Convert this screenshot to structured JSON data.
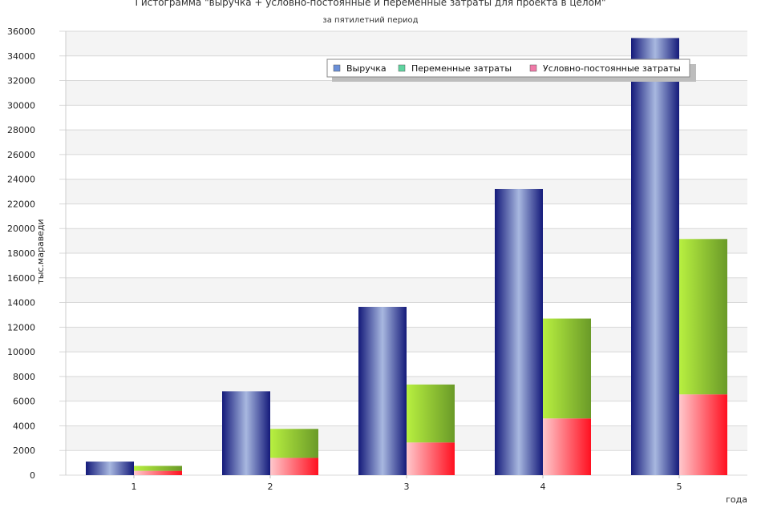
{
  "chart_data": {
    "type": "bar",
    "title": "Гистограмма \"выручка + условно-постоянные и переменные затраты для проекта в целом\"",
    "subtitle": "за пятилетний период",
    "xlabel": "года",
    "ylabel": "тыс.мараведи",
    "categories": [
      "1",
      "2",
      "3",
      "4",
      "5"
    ],
    "ylim": [
      0,
      36000
    ],
    "yticks": [
      "0",
      "2000",
      "4000",
      "6000",
      "8000",
      "10000",
      "12000",
      "14000",
      "16000",
      "18000",
      "20000",
      "22000",
      "24000",
      "26000",
      "28000",
      "30000",
      "32000",
      "34000",
      "36000"
    ],
    "grid": true,
    "legend_position": "top-right",
    "series": [
      {
        "name": "Выручка",
        "stack": "revenue",
        "values": [
          1100,
          6800,
          13650,
          23200,
          35450
        ]
      },
      {
        "name": "Переменные затраты",
        "stack": "costs",
        "values": [
          400,
          2350,
          4700,
          8100,
          12600
        ]
      },
      {
        "name": "Условно-постоянные затраты",
        "stack": "costs",
        "values": [
          350,
          1400,
          2650,
          4600,
          6550
        ]
      }
    ],
    "colors": {
      "Выручка": "#1a237e",
      "Переменные затраты": "#8bc34a",
      "Условно-постоянные затраты": "#ff3344"
    },
    "legend_swatch_colors": {
      "Выручка": "#6a8fd8",
      "Переменные затраты": "#5fd4a0",
      "Условно-постоянные затраты": "#f07aa8"
    }
  }
}
